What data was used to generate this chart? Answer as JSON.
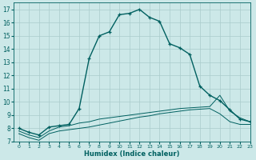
{
  "xlabel": "Humidex (Indice chaleur)",
  "background_color": "#cce8e8",
  "grid_color": "#aacccc",
  "line_color": "#006060",
  "xlim": [
    -0.5,
    23
  ],
  "ylim": [
    7,
    17.5
  ],
  "xticks": [
    0,
    1,
    2,
    3,
    4,
    5,
    6,
    7,
    8,
    9,
    10,
    11,
    12,
    13,
    14,
    15,
    16,
    17,
    18,
    19,
    20,
    21,
    22,
    23
  ],
  "yticks": [
    7,
    8,
    9,
    10,
    11,
    12,
    13,
    14,
    15,
    16,
    17
  ],
  "curve1_x": [
    0,
    1,
    2,
    3,
    4,
    5,
    6,
    7,
    8,
    9,
    10,
    11,
    12,
    13,
    14,
    15,
    16,
    17,
    18,
    19,
    20,
    21,
    22,
    23
  ],
  "curve1_y": [
    8.0,
    7.7,
    7.5,
    8.1,
    8.2,
    8.3,
    9.5,
    13.3,
    15.0,
    15.3,
    16.6,
    16.7,
    17.0,
    16.4,
    16.1,
    14.4,
    14.1,
    13.6,
    11.2,
    10.5,
    10.1,
    9.4,
    8.7,
    8.5
  ],
  "curve2_x": [
    0,
    1,
    2,
    3,
    4,
    5,
    6,
    7,
    8,
    9,
    10,
    11,
    12,
    13,
    14,
    15,
    16,
    17,
    18,
    19,
    20,
    21,
    22,
    23
  ],
  "curve2_y": [
    7.8,
    7.5,
    7.3,
    7.8,
    8.1,
    8.2,
    8.4,
    8.5,
    8.7,
    8.8,
    8.9,
    9.0,
    9.1,
    9.2,
    9.3,
    9.4,
    9.5,
    9.55,
    9.6,
    9.65,
    10.5,
    9.3,
    8.8,
    8.5
  ],
  "curve3_x": [
    0,
    1,
    2,
    3,
    4,
    5,
    6,
    7,
    8,
    9,
    10,
    11,
    12,
    13,
    14,
    15,
    16,
    17,
    18,
    19,
    20,
    21,
    22,
    23
  ],
  "curve3_y": [
    7.6,
    7.3,
    7.1,
    7.6,
    7.8,
    7.9,
    8.0,
    8.1,
    8.25,
    8.4,
    8.55,
    8.7,
    8.85,
    8.95,
    9.1,
    9.2,
    9.3,
    9.4,
    9.45,
    9.5,
    9.1,
    8.5,
    8.3,
    8.3
  ]
}
